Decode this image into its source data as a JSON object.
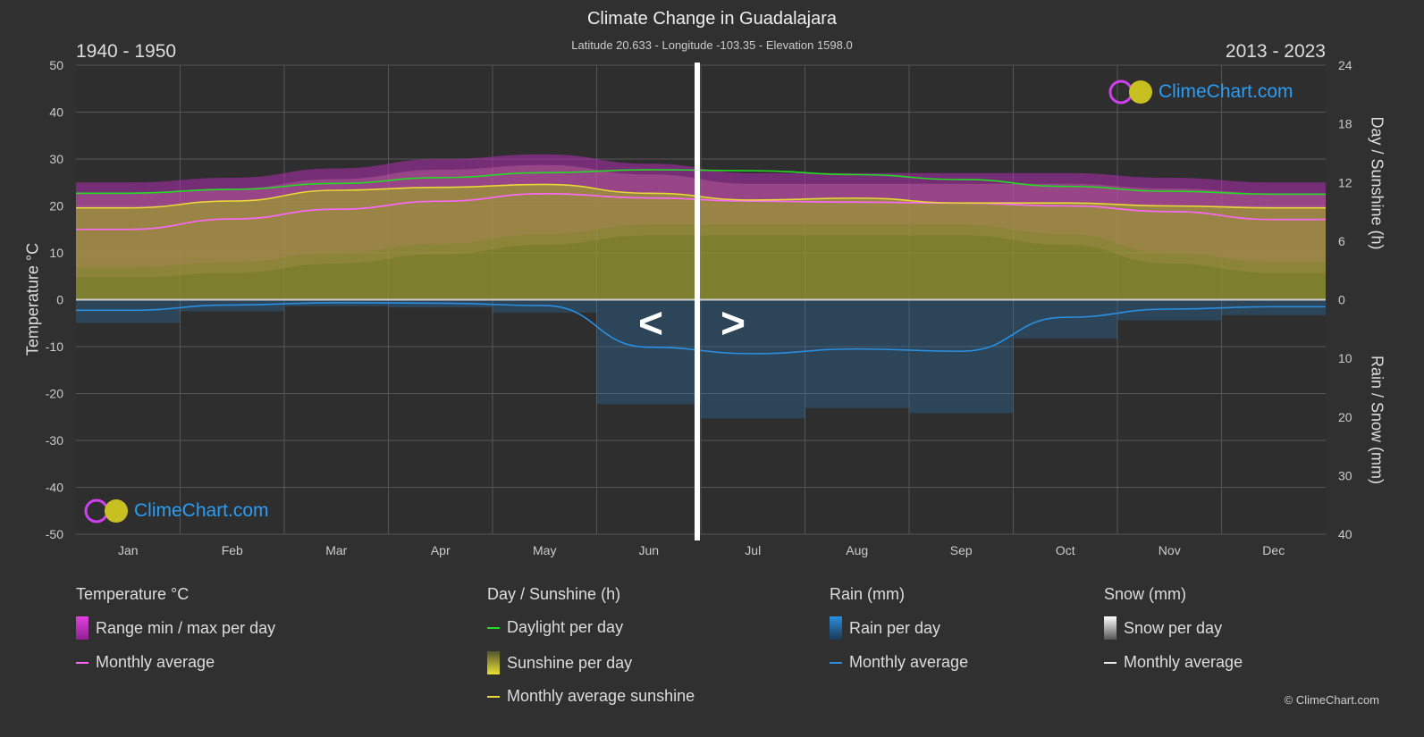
{
  "header": {
    "title": "Climate Change in Guadalajara",
    "subtitle": "Latitude 20.633 - Longitude -103.35 - Elevation 1598.0",
    "period_left": "1940 - 1950",
    "period_right": "2013 - 2023"
  },
  "logo_text": "ClimeChart.com",
  "copyright": "© ClimeChart.com",
  "nav": {
    "prev": "<",
    "next": ">"
  },
  "chart_data": {
    "type": "area",
    "categories": [
      "Jan",
      "Feb",
      "Mar",
      "Apr",
      "May",
      "Jun",
      "Jul",
      "Aug",
      "Sep",
      "Oct",
      "Nov",
      "Dec"
    ],
    "y_left": {
      "label": "Temperature °C",
      "range": [
        -50,
        50
      ],
      "ticks": [
        50,
        40,
        30,
        20,
        10,
        0,
        -10,
        -20,
        -30,
        -40,
        -50
      ]
    },
    "y_right_top": {
      "label": "Day / Sunshine (h)",
      "range": [
        0,
        24
      ],
      "ticks": [
        24,
        18,
        12,
        6,
        0
      ]
    },
    "y_right_bottom": {
      "label": "Rain / Snow (mm)",
      "range": [
        0,
        40
      ],
      "ticks": [
        0,
        10,
        20,
        30,
        40
      ]
    },
    "grid": true,
    "series": [
      {
        "name": "Range min / max per day",
        "kind": "band",
        "axis": "temp",
        "color": "#c81ec8",
        "min": [
          7,
          8,
          10,
          12,
          14,
          16,
          16,
          16,
          16,
          14,
          10,
          8
        ],
        "max": [
          25,
          26,
          28,
          30,
          31,
          29,
          27,
          27,
          27,
          27,
          26,
          25
        ]
      },
      {
        "name": "Sunshine per day",
        "kind": "area",
        "axis": "sun",
        "color": "#9a9a30",
        "values": [
          9.4,
          10.1,
          11.2,
          11.5,
          11.8,
          10.9,
          10.2,
          10.4,
          9.9,
          9.9,
          9.6,
          9.4
        ]
      },
      {
        "name": "Monthly average",
        "kind": "line",
        "axis": "temp",
        "color": "#ff66ff",
        "values": [
          15.0,
          17.2,
          19.3,
          21.0,
          22.6,
          21.7,
          21.0,
          20.8,
          20.6,
          20.0,
          18.8,
          17.1
        ]
      },
      {
        "name": "Daylight per day",
        "kind": "line",
        "axis": "sun",
        "color": "#22dd22",
        "values": [
          10.9,
          11.3,
          11.9,
          12.5,
          13.0,
          13.3,
          13.2,
          12.8,
          12.3,
          11.6,
          11.1,
          10.8
        ]
      },
      {
        "name": "Monthly average sunshine",
        "kind": "line",
        "axis": "sun",
        "color": "#e8d838",
        "values": [
          9.4,
          10.1,
          11.2,
          11.5,
          11.8,
          10.9,
          10.2,
          10.4,
          9.9,
          9.9,
          9.6,
          9.4
        ]
      },
      {
        "name": "Rain monthly average",
        "kind": "line",
        "axis": "rain",
        "color": "#2a8fe0",
        "values": [
          1.8,
          0.9,
          0.5,
          0.6,
          1.0,
          8.1,
          9.2,
          8.4,
          8.8,
          3.0,
          1.6,
          1.2
        ]
      }
    ]
  },
  "legend": {
    "temp": {
      "title": "Temperature °C",
      "items": [
        "Range min / max per day",
        "Monthly average"
      ]
    },
    "sun": {
      "title": "Day / Sunshine (h)",
      "items": [
        "Daylight per day",
        "Sunshine per day",
        "Monthly average sunshine"
      ]
    },
    "rain": {
      "title": "Rain (mm)",
      "items": [
        "Rain per day",
        "Monthly average"
      ]
    },
    "snow": {
      "title": "Snow (mm)",
      "items": [
        "Snow per day",
        "Monthly average"
      ]
    }
  }
}
